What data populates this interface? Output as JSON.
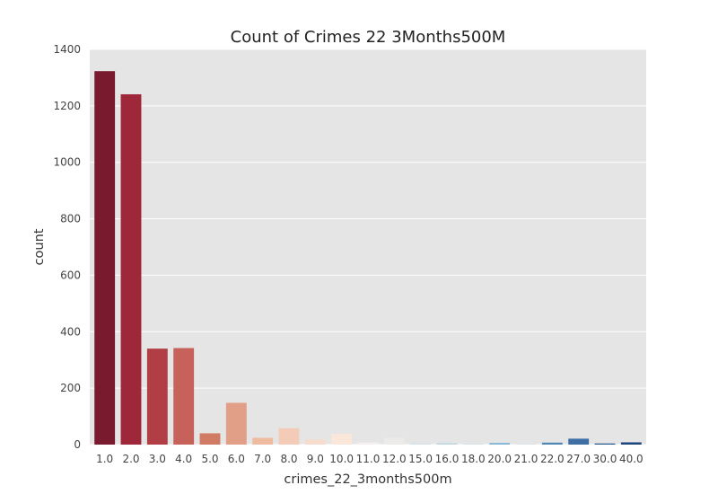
{
  "chart_data": {
    "type": "bar",
    "title": "Count of Crimes 22 3Months500M",
    "xlabel": "crimes_22_3months500m",
    "ylabel": "count",
    "categories": [
      "1.0",
      "2.0",
      "3.0",
      "4.0",
      "5.0",
      "6.0",
      "7.0",
      "8.0",
      "9.0",
      "10.0",
      "11.0",
      "12.0",
      "15.0",
      "16.0",
      "18.0",
      "20.0",
      "21.0",
      "22.0",
      "27.0",
      "30.0",
      "40.0"
    ],
    "values": [
      1323,
      1241,
      340,
      342,
      40,
      148,
      24,
      58,
      18,
      38,
      8,
      24,
      4,
      5,
      1,
      6,
      2,
      7,
      21,
      4,
      8
    ],
    "colors": [
      "#7a1a2e",
      "#9e2739",
      "#b13d45",
      "#c6625a",
      "#d17a64",
      "#e29f88",
      "#eebaa0",
      "#f3cbb7",
      "#f6dccc",
      "#fbe6da",
      "#f3f0ef",
      "#ecebea",
      "#d3e2ec",
      "#bed5e5",
      "#a9cbe2",
      "#86b6d7",
      "#d7e5ef",
      "#4f87b7",
      "#3e6fa5",
      "#2c5a93",
      "#1e467f"
    ],
    "ylim": [
      0,
      1400
    ],
    "yticks": [
      0,
      200,
      400,
      600,
      800,
      1000,
      1200,
      1400
    ],
    "grid": true,
    "legend": "none"
  }
}
